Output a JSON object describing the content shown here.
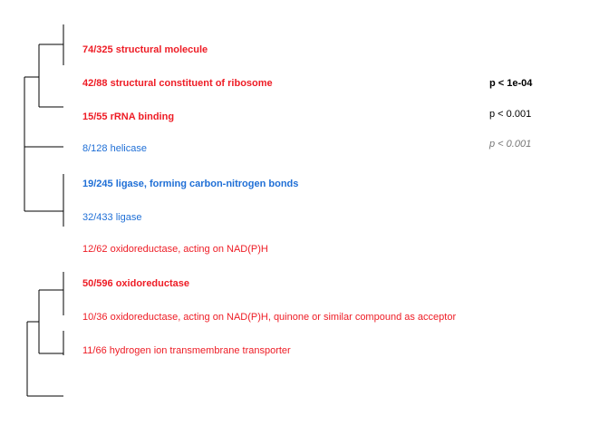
{
  "colors": {
    "red": "#ee1c25",
    "blue": "#1f6fd6",
    "black": "#000000",
    "gray": "#777777"
  },
  "terms": [
    {
      "text": "74/325 structural molecule",
      "color": "red",
      "bold": true
    },
    {
      "text": "42/88 structural constituent of ribosome",
      "color": "red",
      "bold": true
    },
    {
      "text": "15/55 rRNA binding",
      "color": "red",
      "bold": true
    },
    {
      "text": "8/128 helicase",
      "color": "blue",
      "bold": false
    },
    {
      "text": "19/245 ligase, forming carbon-nitrogen bonds",
      "color": "blue",
      "bold": true
    },
    {
      "text": "32/433 ligase",
      "color": "blue",
      "bold": false
    },
    {
      "text": "12/62 oxidoreductase, acting on NAD(P)H",
      "color": "red",
      "bold": false
    },
    {
      "text": "50/596 oxidoreductase",
      "color": "red",
      "bold": true
    },
    {
      "text": "10/36 oxidoreductase, acting on NAD(P)H, quinone or similar compound as acceptor",
      "color": "red",
      "bold": false
    },
    {
      "text": "11/66 hydrogen ion transmembrane transporter",
      "color": "red",
      "bold": false
    }
  ],
  "legend": [
    {
      "text": "p < 1e-04",
      "style": "bold"
    },
    {
      "text": "p < 0.001",
      "style": "normal"
    },
    {
      "text": "p < 0.001",
      "style": "italic"
    }
  ]
}
